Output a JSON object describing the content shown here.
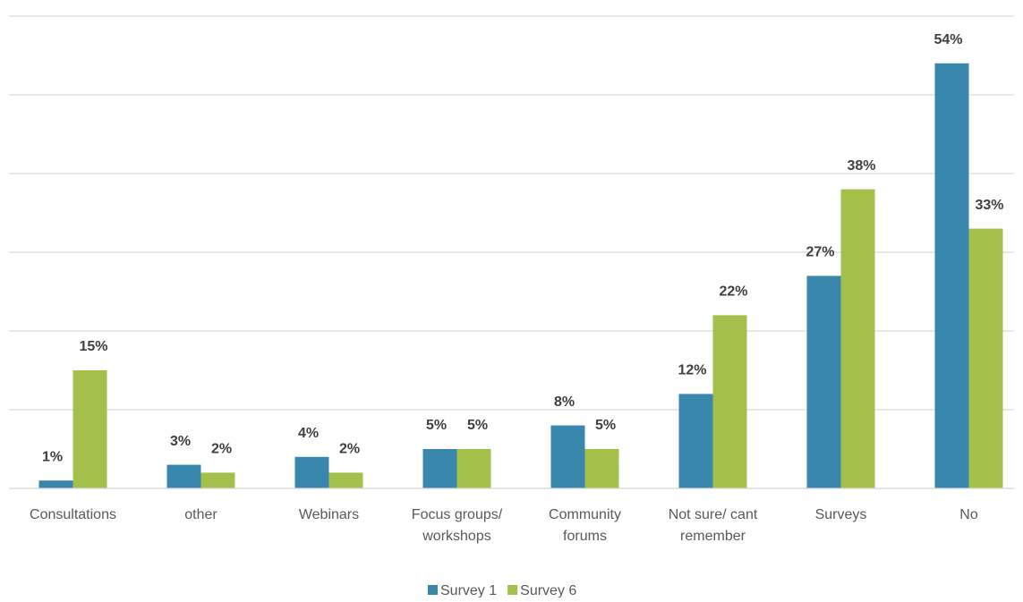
{
  "chart_data": {
    "type": "bar",
    "categories": [
      "Consultations",
      "other",
      "Webinars",
      "Focus groups/ workshops",
      "Community forums",
      "Not sure/ cant remember",
      "Surveys",
      "No"
    ],
    "series": [
      {
        "name": "Survey 1",
        "color": "#3a87ad",
        "values": [
          1,
          3,
          4,
          5,
          8,
          12,
          27,
          54
        ],
        "value_labels": [
          "1%",
          "3%",
          "4%",
          "5%",
          "8%",
          "12%",
          "27%",
          "54%"
        ]
      },
      {
        "name": "Survey 6",
        "color": "#a2c04a",
        "values": [
          15,
          2,
          2,
          5,
          5,
          22,
          38,
          33
        ],
        "value_labels": [
          "15%",
          "2%",
          "2%",
          "5%",
          "5%",
          "22%",
          "38%",
          "33%"
        ]
      }
    ],
    "ylim": [
      0,
      60
    ],
    "yticks": [
      0,
      10,
      20,
      30,
      40,
      50,
      60
    ],
    "grid": true,
    "legend": "bottom"
  }
}
